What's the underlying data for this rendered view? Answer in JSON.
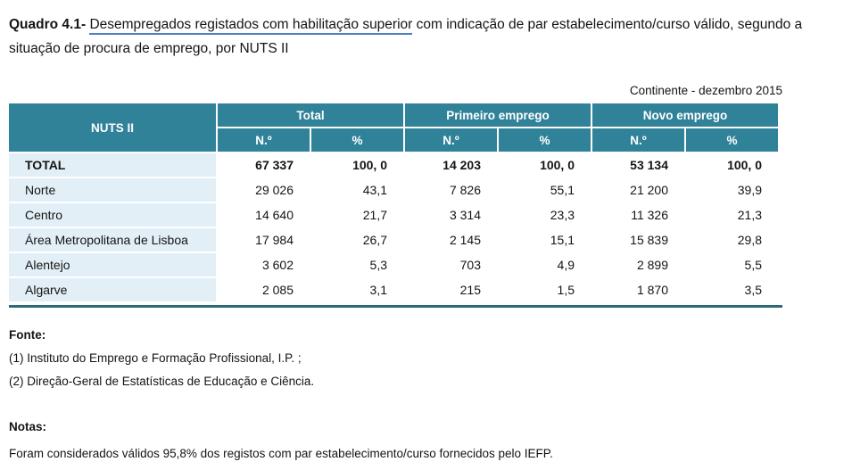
{
  "title": {
    "prefix": "Quadro 4.1-",
    "underlined": "Desempregados registados com habilitação superior",
    "rest": "com indicação de par estabelecimento/curso válido, segundo a situação de procura de emprego, por NUTS II"
  },
  "caption": "Continente - dezembro 2015",
  "table": {
    "row_header": "NUTS II",
    "groups": [
      {
        "label": "Total"
      },
      {
        "label": "Primeiro emprego"
      },
      {
        "label": "Novo emprego"
      }
    ],
    "subheaders": [
      "N.º",
      "%",
      "N.º",
      "%",
      "N.º",
      "%"
    ],
    "rows": [
      {
        "label": "TOTAL",
        "values": [
          "67 337",
          "100, 0",
          "14 203",
          "100, 0",
          "53 134",
          "100, 0"
        ]
      },
      {
        "label": "Norte",
        "values": [
          "29 026",
          "43,1",
          "7 826",
          "55,1",
          "21 200",
          "39,9"
        ]
      },
      {
        "label": "Centro",
        "values": [
          "14 640",
          "21,7",
          "3 314",
          "23,3",
          "11 326",
          "21,3"
        ]
      },
      {
        "label": "Área Metropolitana de Lisboa",
        "values": [
          "17 984",
          "26,7",
          "2 145",
          "15,1",
          "15 839",
          "29,8"
        ]
      },
      {
        "label": "Alentejo",
        "values": [
          "3 602",
          "5,3",
          "703",
          "4,9",
          "2 899",
          "5,5"
        ]
      },
      {
        "label": "Algarve",
        "values": [
          "2 085",
          "3,1",
          "215",
          "1,5",
          "1 870",
          "3,5"
        ]
      }
    ]
  },
  "source": {
    "heading": "Fonte:",
    "lines": [
      "(1) Instituto do Emprego e Formação Profissional, I.P. ;",
      "(2) Direção-Geral de Estatísticas de Educação e Ciência."
    ]
  },
  "notes": {
    "heading": "Notas:",
    "lines": [
      "Foram considerados válidos 95,8% dos registos com par estabelecimento/curso fornecidos pelo IEFP."
    ]
  },
  "colors": {
    "header_teal": "#308299",
    "row_label_blue": "#e3eff6",
    "bottom_rule": "#2e6979",
    "title_underline": "#4c80bb"
  }
}
